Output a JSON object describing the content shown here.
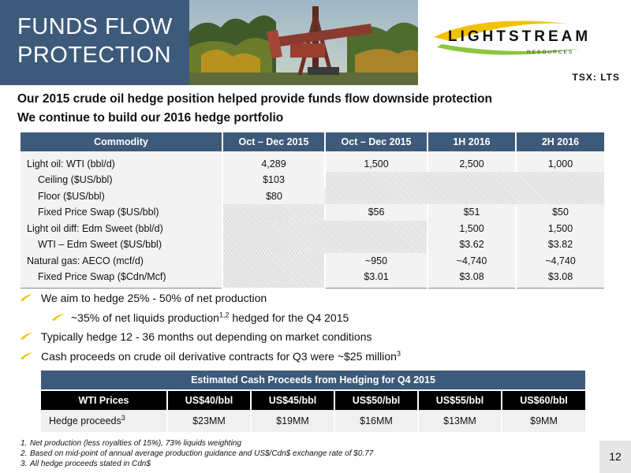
{
  "header": {
    "title_line1": "FUNDS FLOW",
    "title_line2": "PROTECTION",
    "logo_name": "LIGHTSTREAM",
    "logo_sub": "RESOURCES",
    "ticker": "TSX: LTS"
  },
  "subtitle1": "Our 2015 crude oil hedge position helped provide funds flow downside protection",
  "subtitle2": "We continue to build our 2016 hedge portfolio",
  "hedge_table": {
    "headers": [
      "Commodity",
      "Oct – Dec 2015",
      "Oct – Dec 2015",
      "1H 2016",
      "2H 2016"
    ],
    "rows": [
      {
        "label": "Light oil: WTI (bbl/d)",
        "c1": "4,289",
        "c2": "1,500",
        "c3": "2,500",
        "c4": "1,000"
      },
      {
        "label": "Ceiling ($US/bbl)",
        "c1": "$103"
      },
      {
        "label": "Floor ($US/bbl)",
        "c1": "$80"
      },
      {
        "label": "Fixed Price Swap ($US/bbl)",
        "c2": "$56",
        "c3": "$51",
        "c4": "$50"
      },
      {
        "label": "Light oil diff: Edm Sweet (bbl/d)",
        "c3": "1,500",
        "c4": "1,500"
      },
      {
        "label": "WTI – Edm Sweet ($US/bbl)",
        "c3": "$3.62",
        "c4": "$3.82"
      },
      {
        "label": "Natural gas: AECO (mcf/d)",
        "c2": "~950",
        "c3": "~4,740",
        "c4": "~4,740"
      },
      {
        "label": "Fixed Price Swap ($Cdn/Mcf)",
        "c2": "$3.01",
        "c3": "$3.08",
        "c4": "$3.08"
      }
    ]
  },
  "bullets": [
    {
      "text": "We aim to hedge 25% - 50% of net production"
    },
    {
      "text_a": "~35% of net liquids production",
      "sup": "1,2",
      "text_b": " hedged for the Q4 2015"
    },
    {
      "text": "Typically hedge 12 - 36 months out depending on market conditions"
    },
    {
      "text_a": "Cash proceeds on crude oil derivative contracts for Q3 were ~$25 million",
      "sup": "3"
    }
  ],
  "proceeds": {
    "title": "Estimated Cash Proceeds from Hedging for Q4 2015",
    "headers": [
      "WTI Prices",
      "US$40/bbl",
      "US$45/bbl",
      "US$50/bbl",
      "US$55/bbl",
      "US$60/bbl"
    ],
    "row_label": "Hedge proceeds",
    "row_label_sup": "3",
    "values": [
      "$23MM",
      "$19MM",
      "$16MM",
      "$13MM",
      "$9MM"
    ]
  },
  "footnotes": [
    {
      "num": "1.",
      "text": "Net production (less royalties of 15%), 73% liquids weighting"
    },
    {
      "num": "2.",
      "text": "Based on mid-point of annual average production guidance and US$/Cdn$ exchange rate of $0.77"
    },
    {
      "num": "3.",
      "text": "All hedge proceeds stated in Cdn$"
    }
  ],
  "page_number": "12",
  "colors": {
    "header_blue": "#3d5a7a",
    "accent_yellow": "#f2c100",
    "logo_green": "#8dc63f"
  }
}
